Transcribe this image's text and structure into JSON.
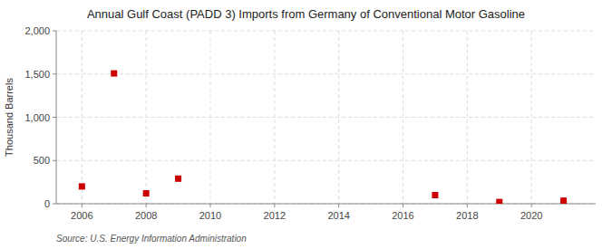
{
  "chart_data": {
    "type": "scatter",
    "title": "Annual Gulf Coast (PADD 3) Imports from Germany of Conventional Motor Gasoline",
    "ylabel": "Thousand Barrels",
    "source": "Source: U.S. Energy Information Administration",
    "x": [
      2006,
      2007,
      2008,
      2009,
      2017,
      2019,
      2021
    ],
    "values": [
      200,
      1507,
      120,
      290,
      100,
      20,
      35
    ],
    "color": "#cc0000",
    "marker": "square",
    "xlim": [
      2005.2,
      2022.0
    ],
    "ylim": [
      0,
      2000
    ],
    "xticks": [
      2006,
      2008,
      2010,
      2012,
      2014,
      2016,
      2018,
      2020
    ],
    "yticks": [
      0,
      500,
      {
        "value": 1000,
        "label": "1,000"
      },
      {
        "value": 1500,
        "label": "1,500"
      },
      {
        "value": 2000,
        "label": "2,000"
      }
    ],
    "grid": true
  }
}
